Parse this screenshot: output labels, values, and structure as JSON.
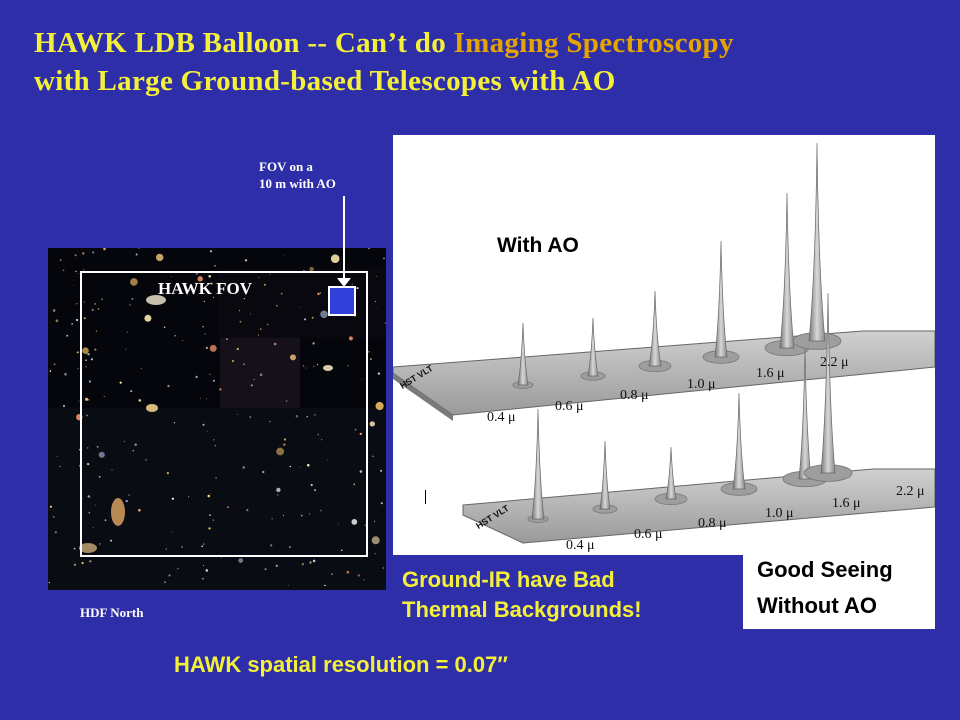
{
  "title": {
    "line1_prefix": "HAWK  LDB Balloon -- Can’t do ",
    "line1_highlight": "Imaging Spectroscopy",
    "line2": "with Large Ground-based Telescopes with AO"
  },
  "hdf": {
    "fov_label": "HAWK FOV",
    "fov10_line1": "FOV on a",
    "fov10_line2": "10 m with AO",
    "caption": "HDF North"
  },
  "plot": {
    "with_ao": "With AO",
    "hst_vlt": "HST VLT",
    "top_ticks": [
      "0.4 μ",
      "0.6 μ",
      "0.8 μ",
      "1.0 μ",
      "1.6 μ",
      "2.2 μ"
    ],
    "bottom_ticks": [
      "0.4 μ",
      "0.6 μ",
      "0.8 μ",
      "1.0 μ",
      "1.6 μ",
      "2.2 μ"
    ]
  },
  "good_seeing": {
    "line1": "Good Seeing",
    "line2": "Without AO"
  },
  "thermal": {
    "line1": "Ground-IR have Bad",
    "line2": "Thermal Backgrounds!"
  },
  "resolution": "HAWK spatial resolution = 0.07″",
  "colors": {
    "background": "#2e2fa8",
    "title_yellow": "#f4f03a",
    "title_highlight": "#e6a400"
  }
}
